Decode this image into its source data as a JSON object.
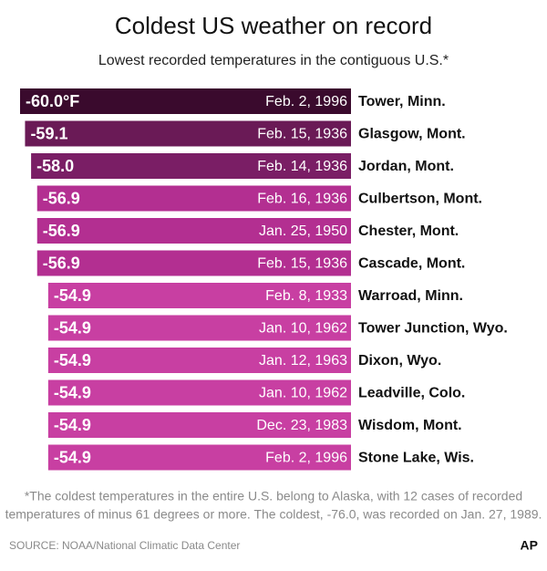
{
  "chart_data": {
    "type": "bar",
    "orientation": "horizontal",
    "title": "Coldest US weather on record",
    "subtitle": "Lowest recorded temperatures in the contiguous U.S.*",
    "categories": [
      "Tower, Minn.",
      "Glasgow, Mont.",
      "Jordan, Mont.",
      "Culbertson, Mont.",
      "Chester, Mont.",
      "Cascade, Mont.",
      "Warroad, Minn.",
      "Tower Junction, Wyo.",
      "Dixon, Wyo.",
      "Leadville, Colo.",
      "Wisdom, Mont.",
      "Stone Lake, Wis."
    ],
    "dates": [
      "Feb. 2, 1996",
      "Feb. 15, 1936",
      "Feb. 14, 1936",
      "Feb. 16, 1936",
      "Jan. 25, 1950",
      "Feb. 15, 1936",
      "Feb. 8, 1933",
      "Jan. 10, 1962",
      "Jan. 12, 1963",
      "Jan. 10, 1962",
      "Dec. 23, 1983",
      "Feb. 2, 1996"
    ],
    "values": [
      -60.0,
      -59.1,
      -58.0,
      -56.9,
      -56.9,
      -56.9,
      -54.9,
      -54.9,
      -54.9,
      -54.9,
      -54.9,
      -54.9
    ],
    "value_labels": [
      "-60.0°F",
      "-59.1",
      "-58.0",
      "-56.9",
      "-56.9",
      "-56.9",
      "-54.9",
      "-54.9",
      "-54.9",
      "-54.9",
      "-54.9",
      "-54.9"
    ],
    "colors": [
      "#3a0a2d",
      "#6a1a56",
      "#7a1e65",
      "#b32f91",
      "#b32f91",
      "#b32f91",
      "#c83fa2",
      "#c83fa2",
      "#c83fa2",
      "#c83fa2",
      "#c83fa2",
      "#c83fa2"
    ],
    "xlim": [
      -60,
      0
    ],
    "note": [
      "*The coldest temperatures in the entire U.S. belong to Alaska, with 12 cases of recorded",
      "temperatures of minus 61 degrees or more. The coldest, -76.0, was recorded on Jan. 27, 1989."
    ],
    "source": "SOURCE: NOAA/National Climatic Data Center",
    "credit": "AP"
  }
}
